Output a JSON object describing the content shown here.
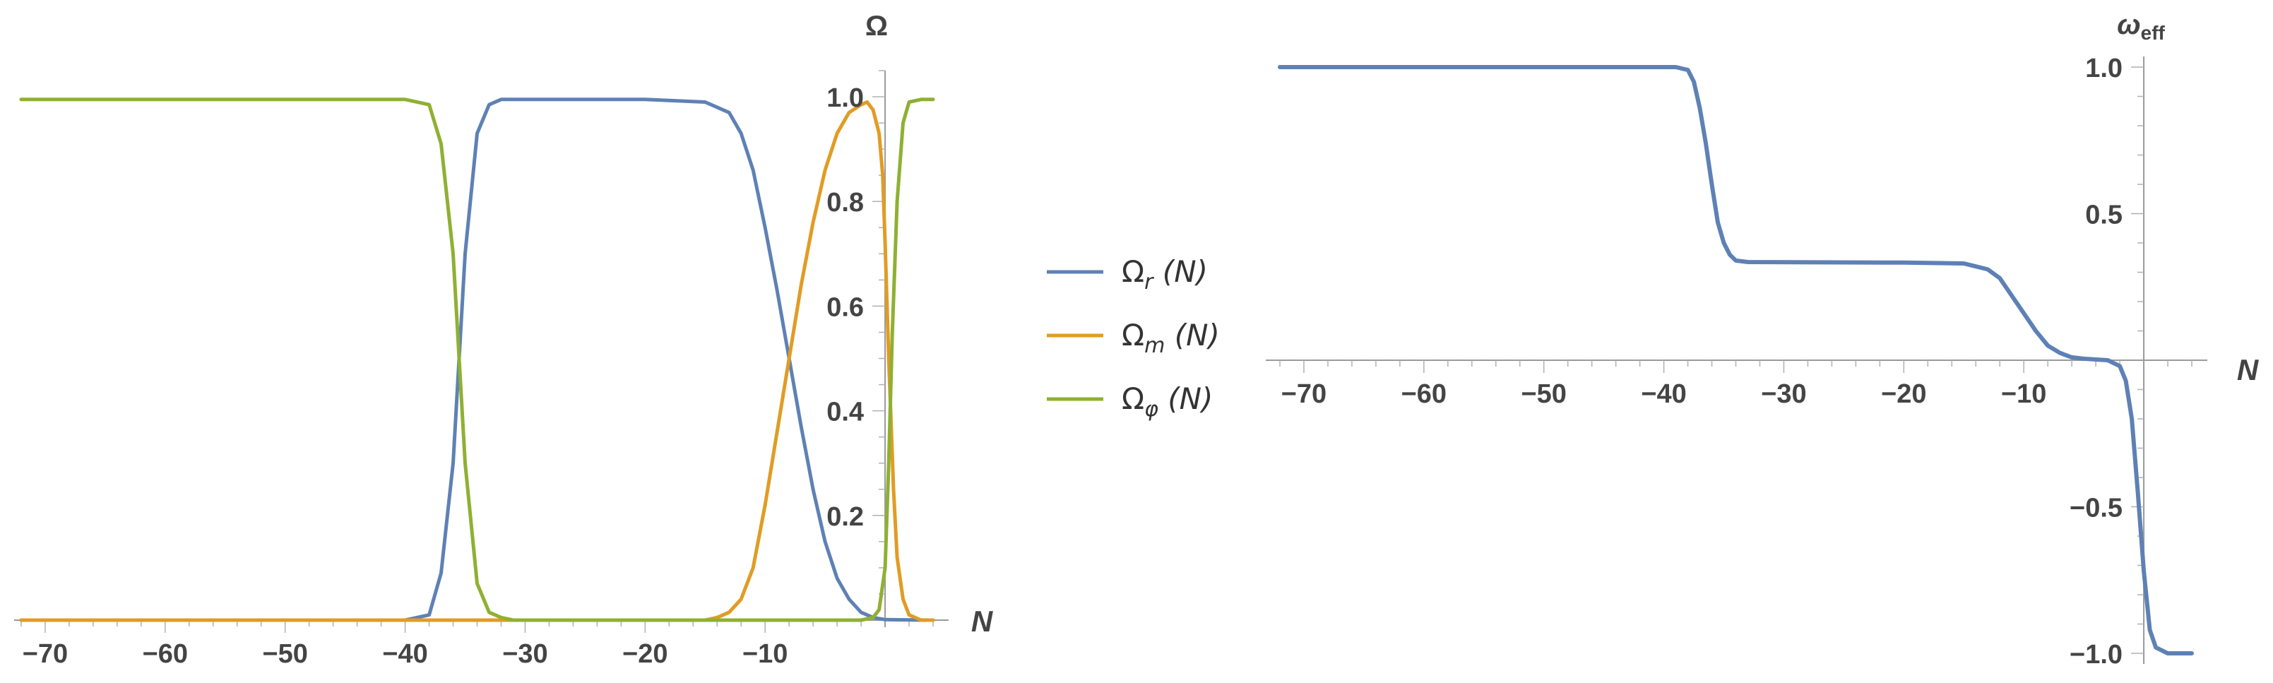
{
  "chart_data": [
    {
      "type": "line",
      "xlabel": "N",
      "ylabel": "Ω",
      "xlim": [
        -72,
        5
      ],
      "ylim": [
        0,
        1.05
      ],
      "x_ticks": [
        -70,
        -60,
        -50,
        -40,
        -30,
        -20,
        -10
      ],
      "x_tick_labels": [
        "−70",
        "−60",
        "−50",
        "−40",
        "−30",
        "−20",
        "−10"
      ],
      "y_ticks": [
        0.2,
        0.4,
        0.6,
        0.8,
        1.0
      ],
      "y_tick_labels": [
        "0.2",
        "0.4",
        "0.6",
        "0.8",
        "1.0"
      ],
      "legend_position": "right",
      "series": [
        {
          "name": "Ω_r (N)",
          "label_base": "Ω",
          "label_sub": "r",
          "label_suffix": " (N)",
          "color": "#5e81b5",
          "points": [
            [
              -72,
              0
            ],
            [
              -40,
              0
            ],
            [
              -38,
              0.01
            ],
            [
              -37,
              0.09
            ],
            [
              -36,
              0.3
            ],
            [
              -35.5,
              0.5
            ],
            [
              -35,
              0.7
            ],
            [
              -34,
              0.93
            ],
            [
              -33,
              0.985
            ],
            [
              -32,
              0.995
            ],
            [
              -20,
              0.995
            ],
            [
              -15,
              0.99
            ],
            [
              -13,
              0.97
            ],
            [
              -12,
              0.93
            ],
            [
              -11,
              0.86
            ],
            [
              -10,
              0.75
            ],
            [
              -9,
              0.63
            ],
            [
              -8,
              0.5
            ],
            [
              -7,
              0.37
            ],
            [
              -6,
              0.25
            ],
            [
              -5,
              0.15
            ],
            [
              -4,
              0.08
            ],
            [
              -3,
              0.04
            ],
            [
              -2,
              0.015
            ],
            [
              -1,
              0.005
            ],
            [
              0,
              0.001
            ],
            [
              4,
              0
            ]
          ]
        },
        {
          "name": "Ω_m (N)",
          "label_base": "Ω",
          "label_sub": "m",
          "label_suffix": " (N)",
          "color": "#e19c24",
          "points": [
            [
              -72,
              0
            ],
            [
              -15,
              0
            ],
            [
              -14,
              0.005
            ],
            [
              -13,
              0.015
            ],
            [
              -12,
              0.04
            ],
            [
              -11,
              0.1
            ],
            [
              -10,
              0.22
            ],
            [
              -9,
              0.36
            ],
            [
              -8,
              0.5
            ],
            [
              -7,
              0.64
            ],
            [
              -6,
              0.76
            ],
            [
              -5,
              0.86
            ],
            [
              -4,
              0.93
            ],
            [
              -3,
              0.97
            ],
            [
              -2,
              0.985
            ],
            [
              -1.5,
              0.99
            ],
            [
              -1,
              0.975
            ],
            [
              -0.5,
              0.93
            ],
            [
              -0.2,
              0.85
            ],
            [
              0,
              0.72
            ],
            [
              0.3,
              0.5
            ],
            [
              0.7,
              0.25
            ],
            [
              1,
              0.12
            ],
            [
              1.5,
              0.04
            ],
            [
              2,
              0.01
            ],
            [
              3,
              0
            ],
            [
              4,
              0
            ]
          ]
        },
        {
          "name": "Ω_φ (N)",
          "label_base": "Ω",
          "label_sub": "φ",
          "label_suffix": " (N)",
          "color": "#8fb032",
          "points": [
            [
              -72,
              0.995
            ],
            [
              -40,
              0.995
            ],
            [
              -38,
              0.985
            ],
            [
              -37,
              0.91
            ],
            [
              -36,
              0.7
            ],
            [
              -35.5,
              0.5
            ],
            [
              -35,
              0.3
            ],
            [
              -34,
              0.07
            ],
            [
              -33,
              0.015
            ],
            [
              -32,
              0.005
            ],
            [
              -31,
              0
            ],
            [
              -2,
              0
            ],
            [
              -1,
              0.005
            ],
            [
              -0.5,
              0.02
            ],
            [
              0,
              0.1
            ],
            [
              0.3,
              0.3
            ],
            [
              0.6,
              0.55
            ],
            [
              1,
              0.8
            ],
            [
              1.5,
              0.95
            ],
            [
              2,
              0.99
            ],
            [
              3,
              0.995
            ],
            [
              4,
              0.995
            ]
          ]
        }
      ]
    },
    {
      "type": "line",
      "xlabel": "N",
      "ylabel": "ω_eff",
      "ylabel_base": "ω",
      "ylabel_sub": "eff",
      "xlim": [
        -72,
        5
      ],
      "ylim": [
        -1.0,
        1.0
      ],
      "x_ticks": [
        -70,
        -60,
        -50,
        -40,
        -30,
        -20,
        -10
      ],
      "x_tick_labels": [
        "−70",
        "−60",
        "−50",
        "−40",
        "−30",
        "−20",
        "−10"
      ],
      "y_ticks": [
        -1.0,
        -0.5,
        0.5,
        1.0
      ],
      "y_tick_labels": [
        "−1.0",
        "−0.5",
        "0.5",
        "1.0"
      ],
      "series": [
        {
          "color": "#5e81b5",
          "points": [
            [
              -72,
              1.0
            ],
            [
              -39,
              1.0
            ],
            [
              -38,
              0.99
            ],
            [
              -37.5,
              0.95
            ],
            [
              -37,
              0.86
            ],
            [
              -36.5,
              0.74
            ],
            [
              -36,
              0.6
            ],
            [
              -35.5,
              0.47
            ],
            [
              -35,
              0.4
            ],
            [
              -34.5,
              0.36
            ],
            [
              -34,
              0.34
            ],
            [
              -33,
              0.335
            ],
            [
              -20,
              0.333
            ],
            [
              -15,
              0.33
            ],
            [
              -13,
              0.31
            ],
            [
              -12,
              0.28
            ],
            [
              -11,
              0.22
            ],
            [
              -10,
              0.16
            ],
            [
              -9,
              0.1
            ],
            [
              -8,
              0.05
            ],
            [
              -7,
              0.025
            ],
            [
              -6,
              0.01
            ],
            [
              -5,
              0.005
            ],
            [
              -3,
              0
            ],
            [
              -2,
              -0.02
            ],
            [
              -1.5,
              -0.07
            ],
            [
              -1,
              -0.2
            ],
            [
              -0.5,
              -0.45
            ],
            [
              0,
              -0.72
            ],
            [
              0.5,
              -0.92
            ],
            [
              1,
              -0.98
            ],
            [
              2,
              -1.0
            ],
            [
              4,
              -1.0
            ]
          ]
        }
      ]
    }
  ]
}
